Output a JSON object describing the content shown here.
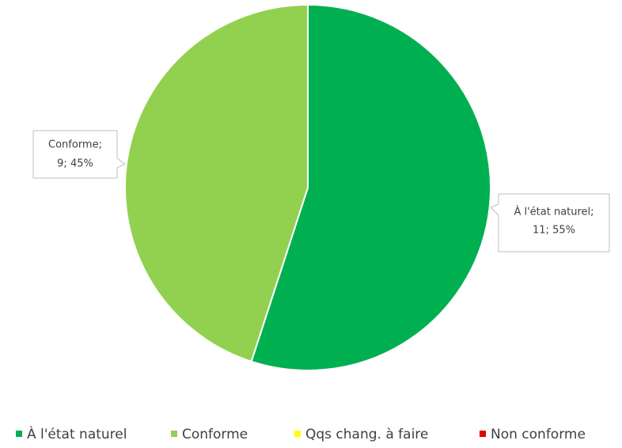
{
  "chart_data": {
    "type": "pie",
    "categories": [
      "À l'état naturel",
      "Conforme",
      "Qqs chang. à faire",
      "Non conforme"
    ],
    "values": [
      11,
      9,
      0,
      0
    ],
    "value_labels": [
      [
        "À l'état naturel;",
        "11; 55%"
      ],
      [
        "Conforme;",
        "9; 45%"
      ],
      null,
      null
    ],
    "colors": [
      "#00b050",
      "#92d050",
      "#ffff00",
      "#e00000"
    ],
    "legend": "bottom"
  }
}
